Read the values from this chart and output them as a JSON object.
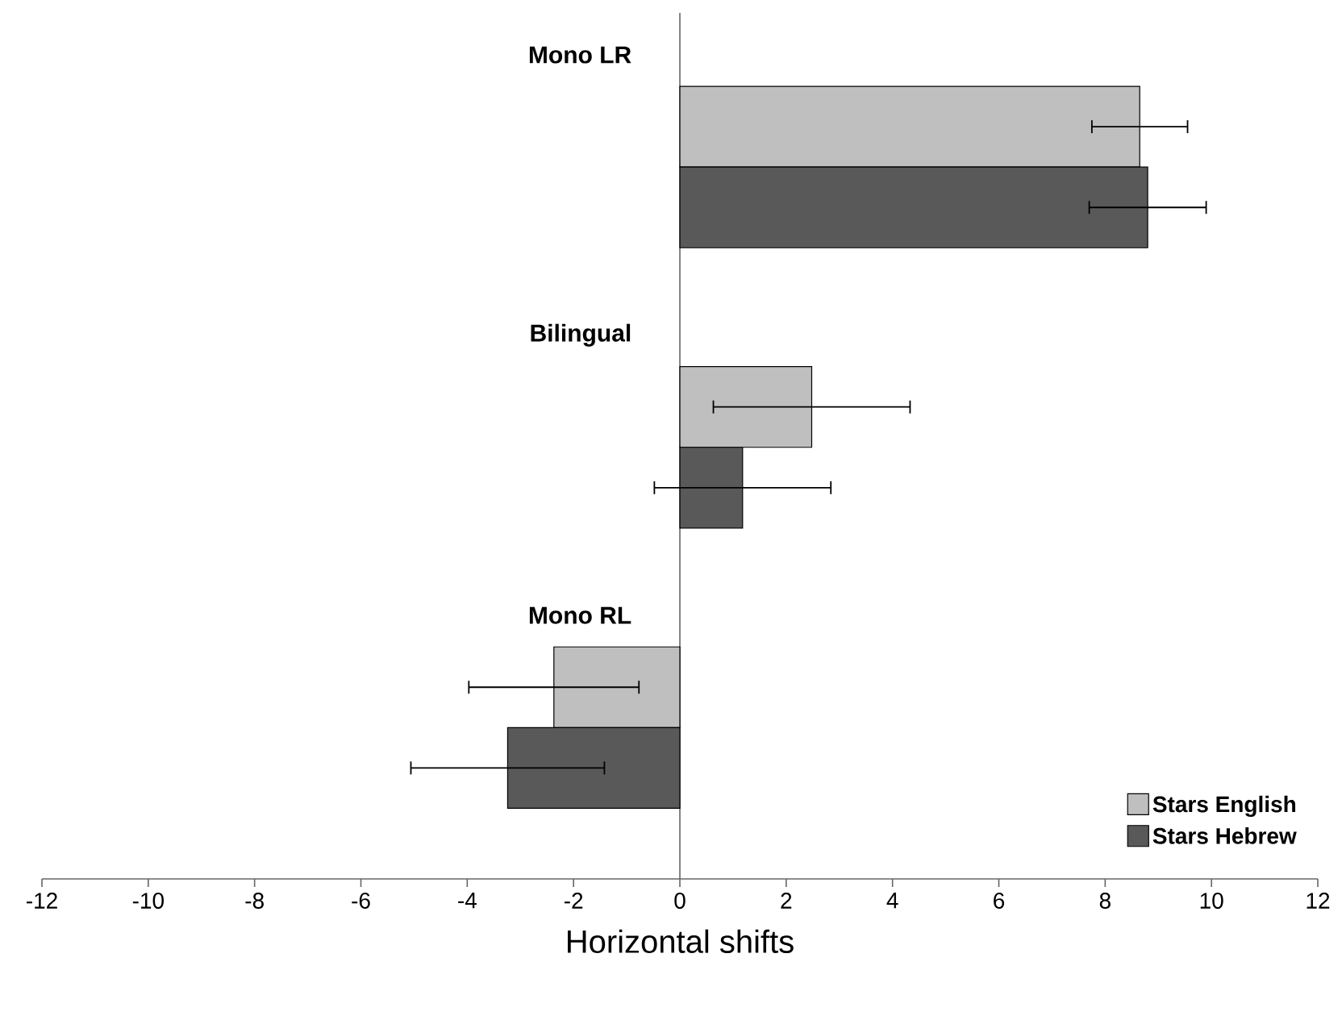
{
  "chart_data": {
    "type": "bar",
    "orientation": "horizontal",
    "categories": [
      "Mono LR",
      "Bilingual",
      "Mono RL"
    ],
    "xlabel": "Horizontal shifts",
    "xlim": [
      -12,
      12
    ],
    "xticks": [
      -12,
      -10,
      -8,
      -6,
      -4,
      -2,
      0,
      2,
      4,
      6,
      8,
      10,
      12
    ],
    "legend": "bottom right",
    "series": [
      {
        "name": "Stars English",
        "color": "#bfbfbf",
        "values": [
          8.65,
          2.48,
          -2.37
        ],
        "errors": [
          0.9,
          1.85,
          1.6
        ]
      },
      {
        "name": "Stars Hebrew",
        "color": "#595959",
        "values": [
          8.8,
          1.18,
          -3.24
        ],
        "errors": [
          1.1,
          1.66,
          1.82
        ]
      }
    ]
  }
}
